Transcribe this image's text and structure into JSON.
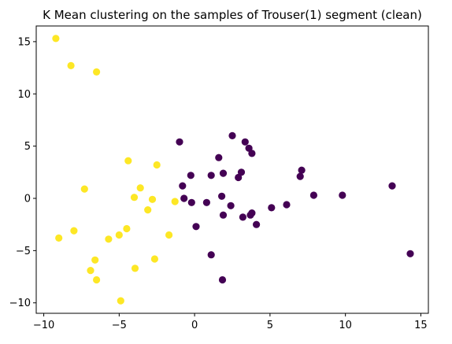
{
  "chart_data": {
    "type": "scatter",
    "title": "K Mean clustering on the samples of Trouser(1) segment (clean)",
    "xlabel": "",
    "ylabel": "",
    "xlim": [
      -10.5,
      15.5
    ],
    "ylim": [
      -11,
      16.5
    ],
    "xticks": [
      -10,
      -5,
      0,
      5,
      10,
      15
    ],
    "yticks": [
      -10,
      -5,
      0,
      5,
      10,
      15
    ],
    "grid": false,
    "legend": "none",
    "colors": {
      "cluster_0": "#440154",
      "cluster_1": "#fde725"
    },
    "series": [
      {
        "cluster": 0,
        "color": "#440154",
        "points": [
          [
            -1.0,
            5.4
          ],
          [
            -0.8,
            1.2
          ],
          [
            -0.7,
            0.0
          ],
          [
            -0.25,
            2.2
          ],
          [
            -0.2,
            -0.4
          ],
          [
            0.1,
            -2.7
          ],
          [
            0.8,
            -0.4
          ],
          [
            1.1,
            2.2
          ],
          [
            1.1,
            -5.4
          ],
          [
            1.6,
            3.9
          ],
          [
            1.8,
            0.2
          ],
          [
            1.85,
            -7.8
          ],
          [
            1.9,
            2.4
          ],
          [
            1.9,
            -1.6
          ],
          [
            2.4,
            -0.7
          ],
          [
            2.5,
            6.0
          ],
          [
            2.9,
            2.0
          ],
          [
            3.1,
            2.5
          ],
          [
            3.2,
            -1.8
          ],
          [
            3.35,
            5.4
          ],
          [
            3.6,
            4.8
          ],
          [
            3.7,
            -1.6
          ],
          [
            3.8,
            -1.4
          ],
          [
            3.8,
            4.3
          ],
          [
            4.1,
            -2.5
          ],
          [
            5.1,
            -0.9
          ],
          [
            6.1,
            -0.6
          ],
          [
            7.0,
            2.1
          ],
          [
            7.1,
            2.7
          ],
          [
            7.9,
            0.3
          ],
          [
            9.8,
            0.3
          ],
          [
            13.1,
            1.2
          ],
          [
            14.3,
            -5.3
          ]
        ]
      },
      {
        "cluster": 1,
        "color": "#fde725",
        "points": [
          [
            -9.2,
            15.3
          ],
          [
            -9.0,
            -3.8
          ],
          [
            -8.2,
            12.7
          ],
          [
            -8.0,
            -3.1
          ],
          [
            -7.3,
            0.9
          ],
          [
            -6.9,
            -6.9
          ],
          [
            -6.6,
            -5.9
          ],
          [
            -6.5,
            12.1
          ],
          [
            -6.5,
            -7.8
          ],
          [
            -5.7,
            -3.9
          ],
          [
            -5.0,
            -3.5
          ],
          [
            -4.9,
            -9.8
          ],
          [
            -4.5,
            -2.9
          ],
          [
            -4.4,
            3.6
          ],
          [
            -4.0,
            0.1
          ],
          [
            -3.95,
            -6.7
          ],
          [
            -3.6,
            1.0
          ],
          [
            -3.1,
            -1.1
          ],
          [
            -2.8,
            -0.1
          ],
          [
            -2.65,
            -5.8
          ],
          [
            -2.5,
            3.2
          ],
          [
            -1.7,
            -3.5
          ],
          [
            -1.3,
            -0.3
          ]
        ]
      }
    ]
  }
}
